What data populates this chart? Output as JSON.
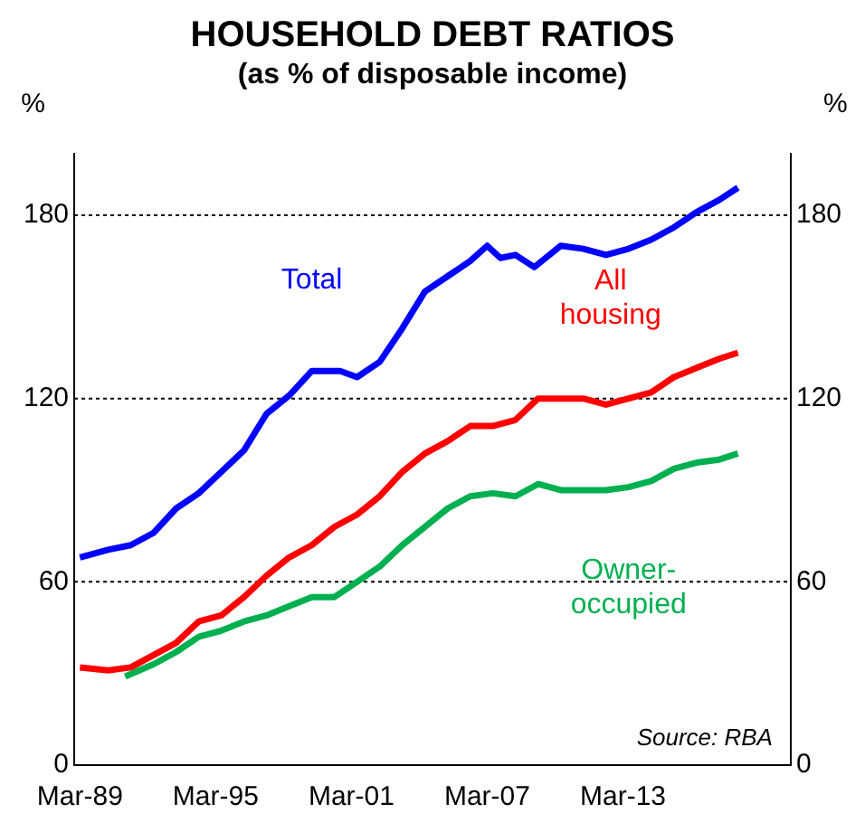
{
  "chart_data": {
    "type": "line",
    "title": "HOUSEHOLD DEBT RATIOS",
    "subtitle": "(as % of disposable income)",
    "ylabel": "%",
    "y2label": "%",
    "xlim": [
      "1988-12",
      "2020-08"
    ],
    "xticks": [
      {
        "value": "1989-03",
        "label": "Mar-89"
      },
      {
        "value": "1995-03",
        "label": "Mar-95"
      },
      {
        "value": "2001-03",
        "label": "Mar-01"
      },
      {
        "value": "2007-03",
        "label": "Mar-07"
      },
      {
        "value": "2013-03",
        "label": "Mar-13"
      }
    ],
    "ylim": [
      0,
      200
    ],
    "yticks": [
      0,
      60,
      120,
      180
    ],
    "y2lim": [
      0,
      200
    ],
    "y2ticks": [
      0,
      60,
      120,
      180
    ],
    "grid": "y",
    "marker": "none",
    "legend": false,
    "annotations": [
      "Source: RBA"
    ],
    "series": [
      {
        "name": "Total",
        "color": "#0000ff",
        "x": [
          "1989-03",
          "1990-06",
          "1991-06",
          "1992-06",
          "1993-06",
          "1994-06",
          "1995-06",
          "1996-06",
          "1997-06",
          "1998-06",
          "1999-06",
          "2000-09",
          "2001-06",
          "2002-06",
          "2003-06",
          "2004-06",
          "2005-06",
          "2006-06",
          "2007-03",
          "2007-10",
          "2008-06",
          "2009-04",
          "2010-06",
          "2011-06",
          "2012-06",
          "2013-06",
          "2014-06",
          "2015-06",
          "2016-06",
          "2017-06",
          "2018-04"
        ],
        "values": [
          68,
          70.5,
          72,
          76,
          84,
          89,
          96,
          103,
          115,
          121,
          129,
          129,
          127,
          132,
          143,
          155,
          160,
          165,
          170,
          166,
          167,
          163,
          170,
          169,
          167,
          169,
          172,
          176,
          181,
          185,
          189
        ]
      },
      {
        "name": "All housing",
        "color": "#ff0000",
        "x": [
          "1989-03",
          "1990-06",
          "1991-06",
          "1992-06",
          "1993-06",
          "1994-06",
          "1995-06",
          "1996-06",
          "1997-06",
          "1998-06",
          "1999-06",
          "2000-06",
          "2001-06",
          "2002-06",
          "2003-06",
          "2004-06",
          "2005-06",
          "2006-06",
          "2007-06",
          "2008-06",
          "2009-06",
          "2010-06",
          "2011-06",
          "2012-06",
          "2013-06",
          "2014-06",
          "2015-06",
          "2016-06",
          "2017-06",
          "2018-04"
        ],
        "values": [
          32,
          31,
          32,
          36,
          40,
          47,
          49,
          55,
          62,
          68,
          72,
          78,
          82,
          88,
          96,
          102,
          106,
          111,
          111,
          113,
          120,
          120,
          120,
          118,
          120,
          122,
          127,
          130,
          133,
          135
        ]
      },
      {
        "name": "Owner-occupied",
        "color": "#00b050",
        "x": [
          "1991-03",
          "1992-06",
          "1993-06",
          "1994-06",
          "1995-06",
          "1996-06",
          "1997-06",
          "1998-06",
          "1999-06",
          "2000-06",
          "2001-06",
          "2002-06",
          "2003-06",
          "2004-06",
          "2005-06",
          "2006-06",
          "2007-06",
          "2008-06",
          "2009-06",
          "2010-06",
          "2011-06",
          "2012-06",
          "2013-06",
          "2014-06",
          "2015-06",
          "2016-06",
          "2017-06",
          "2018-04"
        ],
        "values": [
          29,
          33,
          37,
          42,
          44,
          47,
          49,
          52,
          55,
          55,
          60,
          65,
          72,
          78,
          84,
          88,
          89,
          88,
          92,
          90,
          90,
          90,
          91,
          93,
          97,
          99,
          100,
          102
        ]
      }
    ]
  }
}
